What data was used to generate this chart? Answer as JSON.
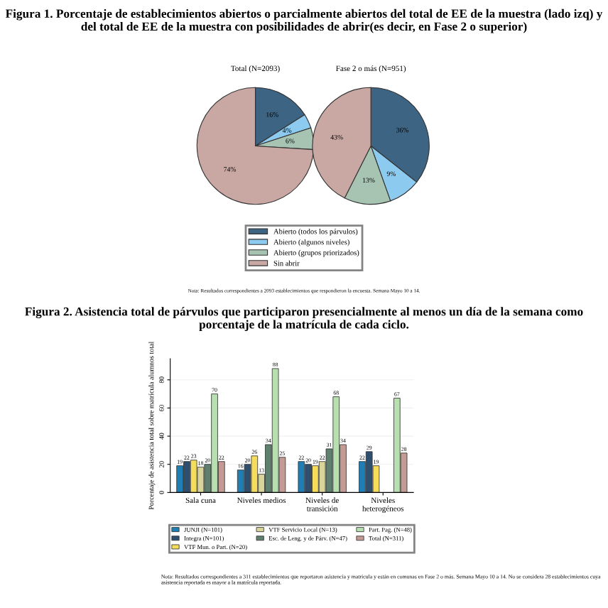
{
  "chart_data": [
    {
      "type": "pie",
      "title": "Figura 1. Porcentaje de establecimientos abiertos o parcialmente abiertos del total de EE de la muestra (lado izq) y del total de EE de la muestra con posibilidades de abrir(es decir, en Fase 2 o superior)",
      "subtitle": "Total (N=2093)",
      "values": [
        16,
        4,
        6,
        74
      ],
      "value_labels": [
        "16%",
        "4%",
        "6%",
        "74%"
      ],
      "colors": [
        "#3d6482",
        "#8ccaef",
        "#a7c4b2",
        "#c9a8a4"
      ],
      "annotations": [
        "Nota: Resultados correspondientes a 2093 establecimientos que respondieron la encuesta. Semana Mayo 10 a 14."
      ]
    },
    {
      "type": "pie",
      "subtitle": "Fase 2 o más (N=951)",
      "categories": [
        "Abierto (todos los párvulos)",
        "Abierto (algunos niveles)",
        "Abierto (grupos priorizados)",
        "Sin abrir"
      ],
      "values": [
        36,
        9,
        13,
        43
      ],
      "value_labels": [
        "36%",
        "9%",
        "13%",
        "43%"
      ],
      "colors": [
        "#3d6482",
        "#8ccaef",
        "#a7c4b2",
        "#c9a8a4"
      ],
      "legend": "bottom"
    },
    {
      "type": "bar",
      "title": "Figura 2. Asistencia total de párvulos que participaron presencialmente al menos un día de la semana como porcentaje de la matrícula de cada ciclo.",
      "ylabel": "Porcentaje de asistencia total sobre matrícula alumnos total",
      "categories": [
        "Sala cuna",
        "Niveles medios",
        "Niveles de\ntransición",
        "Niveles\nheterogéneos"
      ],
      "ylim": [
        0,
        95
      ],
      "yticks": [
        0,
        20,
        40,
        60,
        80
      ],
      "grid": "y",
      "legend": "bottom",
      "data_labels": true,
      "series": [
        {
          "name": "JUNJI (N=101)",
          "color": "#1f7fb5",
          "values": [
            19,
            16,
            22,
            22
          ]
        },
        {
          "name": "Integra (N=101)",
          "color": "#2f4f6f",
          "values": [
            22,
            20,
            20,
            29
          ]
        },
        {
          "name": "VTF Mun. o Part. (N=20)",
          "color": "#f5dc5a",
          "values": [
            23,
            26,
            19,
            19
          ]
        },
        {
          "name": "VTF Servicio Local (N=13)",
          "color": "#d8d49a",
          "values": [
            18,
            13,
            22,
            null
          ]
        },
        {
          "name": "Esc. de Leng. y de Párv. (N=47)",
          "color": "#5f7f6f",
          "values": [
            20,
            34,
            31,
            null
          ]
        },
        {
          "name": "Part. Pag. (N=48)",
          "color": "#b8dfb0",
          "values": [
            70,
            88,
            68,
            67
          ]
        },
        {
          "name": "Total (N=311)",
          "color": "#c49a95",
          "values": [
            22,
            25,
            34,
            28
          ]
        }
      ],
      "annotations": [
        "Nota: Resultados correspondientes a 311 establecimientos que reportaron asistencia y matrícula y están en comunas en Fase 2 o más. Semana Mayo 10 a 14. No se considera 28 establecimientos cuya asistencia reportada es mayor a la matrícula reportada."
      ]
    }
  ]
}
